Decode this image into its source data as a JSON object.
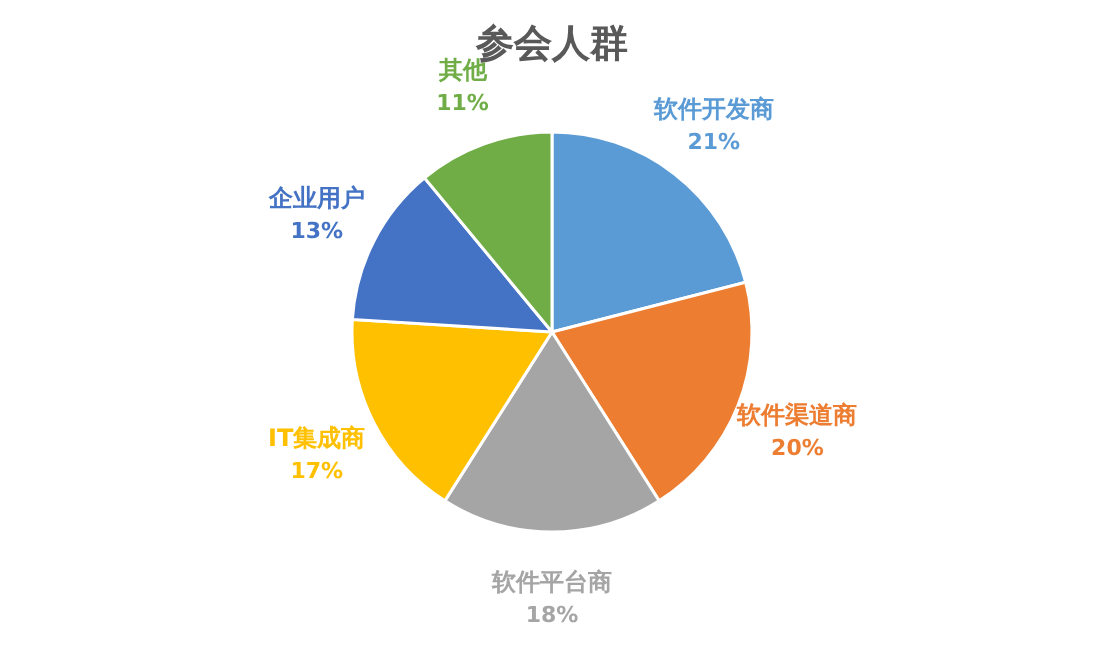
{
  "chart_data": {
    "type": "pie",
    "title": "参会人群",
    "categories": [
      "软件开发商",
      "软件渠道商",
      "软件平台商",
      "IT集成商",
      "企业用户",
      "其他"
    ],
    "values": [
      21,
      20,
      18,
      17,
      13,
      11
    ],
    "value_labels": [
      "21%",
      "20%",
      "18%",
      "17%",
      "13%",
      "11%"
    ],
    "colors": [
      "#5b9bd5",
      "#ed7d31",
      "#a5a5a5",
      "#ffc000",
      "#4472c4",
      "#70ad47"
    ]
  }
}
